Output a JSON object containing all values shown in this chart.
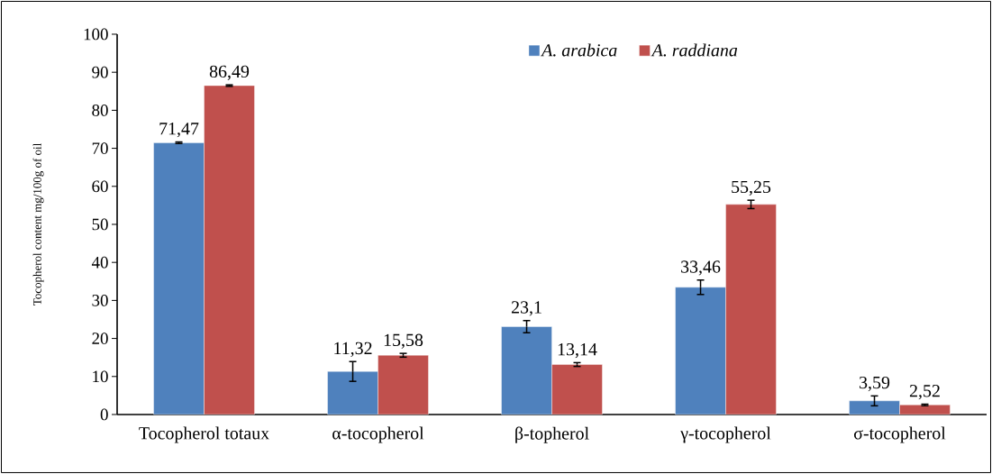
{
  "chart_data": {
    "type": "bar",
    "ylabel": "Tocopherol content mg/100g of oil",
    "categories": [
      "Tocopherol totaux",
      "α-tocopherol",
      "β-topherol",
      "γ-tocopherol",
      "σ-tocopherol"
    ],
    "series": [
      {
        "name": "A. arabica",
        "color": "#4f81bd",
        "values": [
          71.47,
          11.32,
          23.1,
          33.46,
          3.59
        ],
        "errors": [
          0.2,
          2.6,
          1.6,
          1.9,
          1.3
        ],
        "value_labels": [
          "71,47",
          "11,32",
          "23,1",
          "33,46",
          "3,59"
        ]
      },
      {
        "name": "A. raddiana",
        "color": "#c0504d",
        "values": [
          86.49,
          15.58,
          13.14,
          55.25,
          2.52
        ],
        "errors": [
          0.2,
          0.5,
          0.5,
          1.1,
          0.2
        ],
        "value_labels": [
          "86,49",
          "15,58",
          "13,14",
          "55,25",
          "2,52"
        ]
      }
    ],
    "ylim": [
      0,
      100
    ],
    "yticks": [
      0,
      10,
      20,
      30,
      40,
      50,
      60,
      70,
      80,
      90,
      100
    ],
    "grid": false,
    "legend": "top right"
  }
}
